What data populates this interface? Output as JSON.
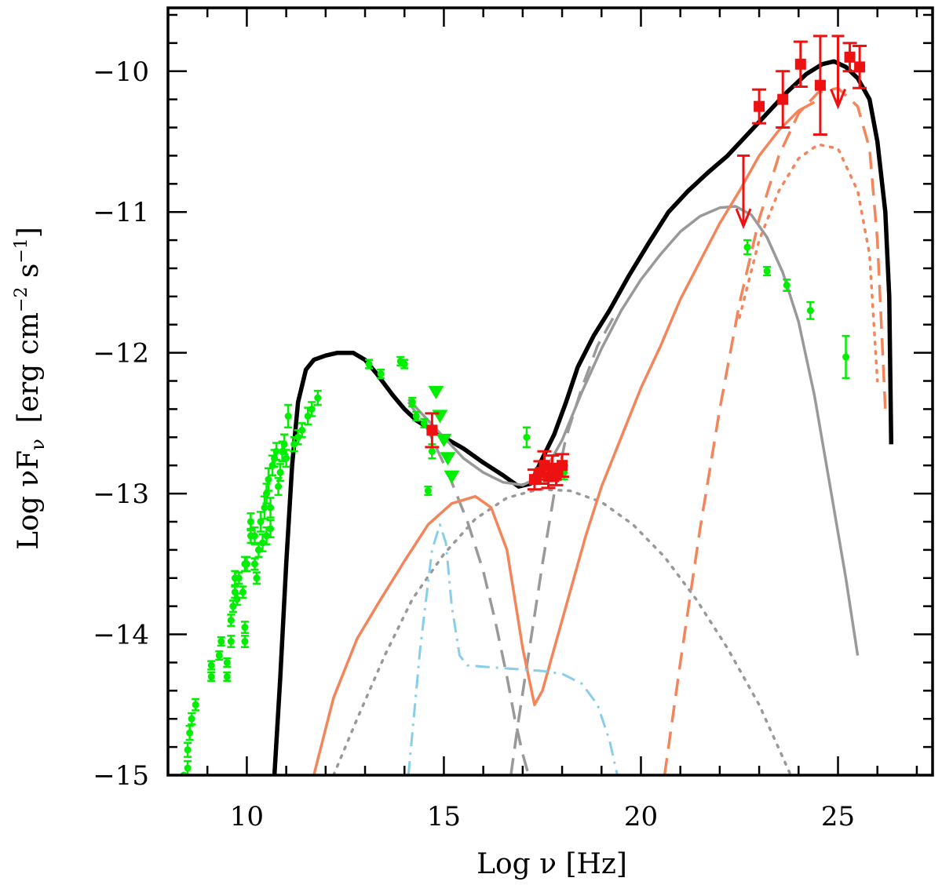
{
  "chart_data": {
    "type": "scatter",
    "title": "",
    "xlabel": "Log ν  [Hz]",
    "ylabel": "Log νF",
    "ylabel_sub": "ν",
    "ylabel_units": "[erg cm",
    "ylabel_units_exp1": "−2",
    "ylabel_units_mid": " s",
    "ylabel_units_exp2": "−1",
    "ylabel_units_end": "]",
    "xlim": [
      8,
      27.4
    ],
    "ylim": [
      -15,
      -9.55
    ],
    "x_ticks": [
      10,
      15,
      20,
      25
    ],
    "x_tick_labels": [
      "10",
      "15",
      "20",
      "25"
    ],
    "y_ticks": [
      -10,
      -11,
      -12,
      -13,
      -14,
      -15
    ],
    "y_tick_labels": [
      "−10",
      "−11",
      "−12",
      "−13",
      "−14",
      "−15"
    ],
    "colors": {
      "total": "#000000",
      "grey_model": "#999999",
      "orange_model": "#f4845a",
      "blue_model": "#87ceeb",
      "archival": "#00ee00",
      "simultaneous": "#ee1111"
    },
    "series": [
      {
        "name": "total model",
        "style": "solid",
        "color": "total",
        "width": 5.5,
        "x": [
          10.7,
          10.85,
          11,
          11.15,
          11.3,
          11.5,
          11.7,
          12,
          12.3,
          12.7,
          13,
          13.3,
          13.7,
          14,
          14.3,
          14.7,
          15,
          15.5,
          16,
          16.5,
          16.9,
          17.2,
          17.5,
          17.8,
          18.1,
          18.4,
          18.8,
          19.2,
          19.7,
          20.2,
          20.7,
          21.2,
          21.7,
          22.2,
          22.7,
          23.2,
          23.7,
          24.2,
          24.6,
          24.9,
          25.2,
          25.5,
          25.8,
          26,
          26.2,
          26.3,
          26.35
        ],
        "y": [
          -15,
          -14.3,
          -13.5,
          -12.8,
          -12.35,
          -12.12,
          -12.05,
          -12.02,
          -12,
          -12,
          -12.05,
          -12.15,
          -12.3,
          -12.4,
          -12.48,
          -12.55,
          -12.6,
          -12.68,
          -12.78,
          -12.87,
          -12.95,
          -12.93,
          -12.75,
          -12.58,
          -12.35,
          -12.1,
          -11.88,
          -11.7,
          -11.45,
          -11.22,
          -11,
          -10.85,
          -10.72,
          -10.6,
          -10.45,
          -10.3,
          -10.15,
          -10.02,
          -9.95,
          -9.93,
          -9.97,
          -10.05,
          -10.2,
          -10.5,
          -11,
          -11.6,
          -12.65
        ]
      },
      {
        "name": "grey solid",
        "style": "solid",
        "color": "grey_model",
        "width": 3.5,
        "x": [
          14.1,
          14.5,
          15,
          15.5,
          16,
          16.5,
          17,
          17.5,
          18,
          18.5,
          19,
          19.5,
          20,
          20.5,
          21,
          21.5,
          22,
          22.4,
          22.8,
          23.2,
          23.6,
          24,
          24.4,
          24.8,
          25.2,
          25.5
        ],
        "y": [
          -12.33,
          -12.45,
          -12.6,
          -12.75,
          -12.85,
          -12.92,
          -12.94,
          -12.87,
          -12.62,
          -12.28,
          -11.97,
          -11.7,
          -11.48,
          -11.3,
          -11.14,
          -11.03,
          -10.97,
          -10.96,
          -11.02,
          -11.18,
          -11.43,
          -11.78,
          -12.3,
          -12.95,
          -13.6,
          -14.15
        ]
      },
      {
        "name": "grey dashed",
        "style": "dashed",
        "color": "grey_model",
        "width": 3.5,
        "x": [
          14.1,
          14.6,
          15.1,
          15.6,
          16,
          16.3,
          16.6,
          16.8,
          17,
          17.2
        ],
        "y": [
          -12.35,
          -12.55,
          -12.85,
          -13.2,
          -13.55,
          -13.9,
          -14.3,
          -14.6,
          -14.85,
          -15.05
        ]
      },
      {
        "name": "grey dashed high",
        "style": "dashed",
        "color": "grey_model",
        "width": 3.5,
        "x": [
          16.7,
          16.9,
          17.2,
          17.5,
          17.8,
          18.1,
          18.5,
          18.9,
          19.3
        ],
        "y": [
          -15,
          -14.6,
          -14.05,
          -13.5,
          -13,
          -12.6,
          -12.25,
          -11.95,
          -11.75
        ]
      },
      {
        "name": "grey dotted",
        "style": "dotted",
        "color": "grey_model",
        "width": 3.5,
        "x": [
          12.2,
          12.8,
          13.5,
          14.2,
          15,
          15.8,
          16.6,
          17.4,
          18.2,
          19,
          19.8,
          20.6,
          21.4,
          22.2,
          23,
          23.8
        ],
        "y": [
          -15,
          -14.6,
          -14.15,
          -13.75,
          -13.43,
          -13.18,
          -13.03,
          -12.97,
          -12.98,
          -13.06,
          -13.22,
          -13.45,
          -13.75,
          -14.1,
          -14.5,
          -15
        ]
      },
      {
        "name": "orange solid",
        "style": "solid",
        "color": "orange_model",
        "width": 3.5,
        "x": [
          11.7,
          12.2,
          12.8,
          13.4,
          14,
          14.6,
          15.2,
          15.8,
          16.2,
          16.6,
          17,
          17.3,
          17.5,
          17.8,
          18.2,
          18.6,
          19,
          19.5,
          20,
          20.5,
          21,
          21.5,
          22,
          22.5,
          23,
          23.5,
          24,
          24.4
        ],
        "y": [
          -15,
          -14.45,
          -14.03,
          -13.75,
          -13.48,
          -13.22,
          -13.07,
          -13.02,
          -13.1,
          -13.4,
          -14.1,
          -14.5,
          -14.4,
          -14.1,
          -13.7,
          -13.3,
          -12.95,
          -12.6,
          -12.25,
          -11.95,
          -11.62,
          -11.35,
          -11.08,
          -10.85,
          -10.6,
          -10.42,
          -10.28,
          -10.22
        ]
      },
      {
        "name": "orange dashed",
        "style": "dashed",
        "color": "orange_model",
        "width": 3.5,
        "x": [
          20.6,
          21,
          21.5,
          22,
          22.5,
          23,
          23.5,
          24,
          24.5,
          25,
          25.5,
          25.8,
          26,
          26.2
        ],
        "y": [
          -15,
          -14.2,
          -13.25,
          -12.4,
          -11.65,
          -11.05,
          -10.6,
          -10.3,
          -10.15,
          -10.12,
          -10.25,
          -10.55,
          -11.2,
          -12.4
        ]
      },
      {
        "name": "orange dotted",
        "style": "dotted",
        "color": "orange_model",
        "width": 3.5,
        "x": [
          22.5,
          23,
          23.5,
          24,
          24.5,
          25,
          25.5,
          25.8,
          26
        ],
        "y": [
          -11.75,
          -11.2,
          -10.85,
          -10.62,
          -10.52,
          -10.55,
          -10.85,
          -11.3,
          -12.2
        ]
      },
      {
        "name": "blue dash-dot",
        "style": "dashdot",
        "color": "blue_model",
        "width": 3,
        "x": [
          14.1,
          14.4,
          14.7,
          14.9,
          15.05,
          15.2,
          15.4,
          15.6,
          16,
          16.5,
          17,
          17.5,
          18,
          18.5,
          18.9,
          19.2,
          19.4
        ],
        "y": [
          -15,
          -14.1,
          -13.4,
          -13.22,
          -13.35,
          -13.8,
          -14.15,
          -14.22,
          -14.23,
          -14.24,
          -14.25,
          -14.26,
          -14.28,
          -14.35,
          -14.5,
          -14.75,
          -15
        ]
      }
    ],
    "archival_points": [
      {
        "x": 8.4,
        "y": -15,
        "e": 0
      },
      {
        "x": 8.5,
        "y": -14.95,
        "e": 0.05
      },
      {
        "x": 8.5,
        "y": -14.82,
        "e": 0.05
      },
      {
        "x": 8.55,
        "y": -14.7,
        "e": 0.05
      },
      {
        "x": 8.6,
        "y": -14.6,
        "e": 0.04
      },
      {
        "x": 8.7,
        "y": -14.5,
        "e": 0.04
      },
      {
        "x": 9.1,
        "y": -14.3,
        "e": 0.03
      },
      {
        "x": 9.1,
        "y": -14.22,
        "e": 0.03
      },
      {
        "x": 9.3,
        "y": -14.15,
        "e": 0.03
      },
      {
        "x": 9.35,
        "y": -14.05,
        "e": 0.03
      },
      {
        "x": 9.5,
        "y": -14.3,
        "e": 0.03
      },
      {
        "x": 9.5,
        "y": -14.2,
        "e": 0.03
      },
      {
        "x": 9.6,
        "y": -14.05,
        "e": 0.04
      },
      {
        "x": 9.6,
        "y": -13.9,
        "e": 0.04
      },
      {
        "x": 9.65,
        "y": -13.8,
        "e": 0.04
      },
      {
        "x": 9.7,
        "y": -13.7,
        "e": 0.04
      },
      {
        "x": 9.7,
        "y": -13.6,
        "e": 0.05
      },
      {
        "x": 9.75,
        "y": -13.75,
        "e": 0.04
      },
      {
        "x": 9.8,
        "y": -13.6,
        "e": 0.04
      },
      {
        "x": 9.9,
        "y": -13.7,
        "e": 0.04
      },
      {
        "x": 9.95,
        "y": -13.5,
        "e": 0.05
      },
      {
        "x": 9.95,
        "y": -14.05,
        "e": 0.04
      },
      {
        "x": 9.95,
        "y": -13.95,
        "e": 0.04
      },
      {
        "x": 10,
        "y": -13.5,
        "e": 0.05
      },
      {
        "x": 10.1,
        "y": -13.3,
        "e": 0.05
      },
      {
        "x": 10.1,
        "y": -13.2,
        "e": 0.06
      },
      {
        "x": 10.2,
        "y": -13.5,
        "e": 0.04
      },
      {
        "x": 10.2,
        "y": -13.3,
        "e": 0.06
      },
      {
        "x": 10.25,
        "y": -13.6,
        "e": 0.04
      },
      {
        "x": 10.3,
        "y": -13.4,
        "e": 0.05
      },
      {
        "x": 10.35,
        "y": -13.2,
        "e": 0.07
      },
      {
        "x": 10.4,
        "y": -13.35,
        "e": 0.06
      },
      {
        "x": 10.45,
        "y": -13.1,
        "e": 0.08
      },
      {
        "x": 10.5,
        "y": -13,
        "e": 0.07
      },
      {
        "x": 10.5,
        "y": -13.3,
        "e": 0.06
      },
      {
        "x": 10.55,
        "y": -12.9,
        "e": 0.08
      },
      {
        "x": 10.6,
        "y": -13.1,
        "e": 0.07
      },
      {
        "x": 10.6,
        "y": -13.25,
        "e": 0.06
      },
      {
        "x": 10.65,
        "y": -12.8,
        "e": 0.07
      },
      {
        "x": 10.7,
        "y": -12.75,
        "e": 0.06
      },
      {
        "x": 10.75,
        "y": -12.7,
        "e": 0.06
      },
      {
        "x": 10.8,
        "y": -12.95,
        "e": 0.06
      },
      {
        "x": 10.85,
        "y": -12.85,
        "e": 0.06
      },
      {
        "x": 10.9,
        "y": -12.7,
        "e": 0.07
      },
      {
        "x": 10.95,
        "y": -12.65,
        "e": 0.07
      },
      {
        "x": 11,
        "y": -12.75,
        "e": 0.06
      },
      {
        "x": 11.05,
        "y": -12.45,
        "e": 0.08
      },
      {
        "x": 11.2,
        "y": -12.65,
        "e": 0.05
      },
      {
        "x": 11.3,
        "y": -12.6,
        "e": 0.05
      },
      {
        "x": 11.4,
        "y": -12.55,
        "e": 0.05
      },
      {
        "x": 11.55,
        "y": -12.45,
        "e": 0.06
      },
      {
        "x": 11.65,
        "y": -12.4,
        "e": 0.05
      },
      {
        "x": 11.8,
        "y": -12.32,
        "e": 0.05
      },
      {
        "x": 13.1,
        "y": -12.08,
        "e": 0.03
      },
      {
        "x": 13.4,
        "y": -12.15,
        "e": 0.03
      },
      {
        "x": 13.9,
        "y": -12.06,
        "e": 0.03
      },
      {
        "x": 14,
        "y": -12.08,
        "e": 0.03
      },
      {
        "x": 14.2,
        "y": -12.35,
        "e": 0.03
      },
      {
        "x": 14.3,
        "y": -12.45,
        "e": 0.03
      },
      {
        "x": 14.5,
        "y": -12.5,
        "e": 0.03
      },
      {
        "x": 14.6,
        "y": -12.98,
        "e": 0.03
      },
      {
        "x": 14.7,
        "y": -12.7,
        "e": 0.05
      },
      {
        "x": 17.1,
        "y": -12.6,
        "e": 0.07
      },
      {
        "x": 18.05,
        "y": -12.85,
        "e": 0.05
      },
      {
        "x": 22.7,
        "y": -11.25,
        "e": 0.05
      },
      {
        "x": 23.2,
        "y": -11.42,
        "e": 0.03
      },
      {
        "x": 23.7,
        "y": -11.52,
        "e": 0.04
      },
      {
        "x": 24.3,
        "y": -11.7,
        "e": 0.06
      },
      {
        "x": 25.2,
        "y": -12.03,
        "e": 0.15
      }
    ],
    "archival_upper_limits": [
      {
        "x": 14.8,
        "y": -12.28
      },
      {
        "x": 14.9,
        "y": -12.45
      },
      {
        "x": 15,
        "y": -12.62
      },
      {
        "x": 15.1,
        "y": -12.75
      },
      {
        "x": 15.2,
        "y": -12.88
      }
    ],
    "simultaneous_points": [
      {
        "x": 14.7,
        "y": -12.55,
        "e": 0.12
      },
      {
        "x": 17.3,
        "y": -12.9,
        "e": 0.07
      },
      {
        "x": 17.45,
        "y": -12.85,
        "e": 0.08
      },
      {
        "x": 17.55,
        "y": -12.8,
        "e": 0.1
      },
      {
        "x": 17.65,
        "y": -12.88,
        "e": 0.08
      },
      {
        "x": 17.75,
        "y": -12.82,
        "e": 0.09
      },
      {
        "x": 17.85,
        "y": -12.87,
        "e": 0.07
      },
      {
        "x": 18,
        "y": -12.8,
        "e": 0.08
      },
      {
        "x": 23,
        "y": -10.25,
        "e": 0.12
      },
      {
        "x": 23.6,
        "y": -10.2,
        "e": 0.2
      },
      {
        "x": 24.05,
        "y": -9.95,
        "e": 0.16
      },
      {
        "x": 24.55,
        "y": -10.1,
        "e": 0.35
      },
      {
        "x": 25.3,
        "y": -9.9,
        "e": 0.1
      },
      {
        "x": 25.55,
        "y": -9.97,
        "e": 0.15
      }
    ],
    "simultaneous_upper_limits": [
      {
        "x": 22.6,
        "y": -10.6
      },
      {
        "x": 25,
        "y": -9.75
      }
    ]
  }
}
